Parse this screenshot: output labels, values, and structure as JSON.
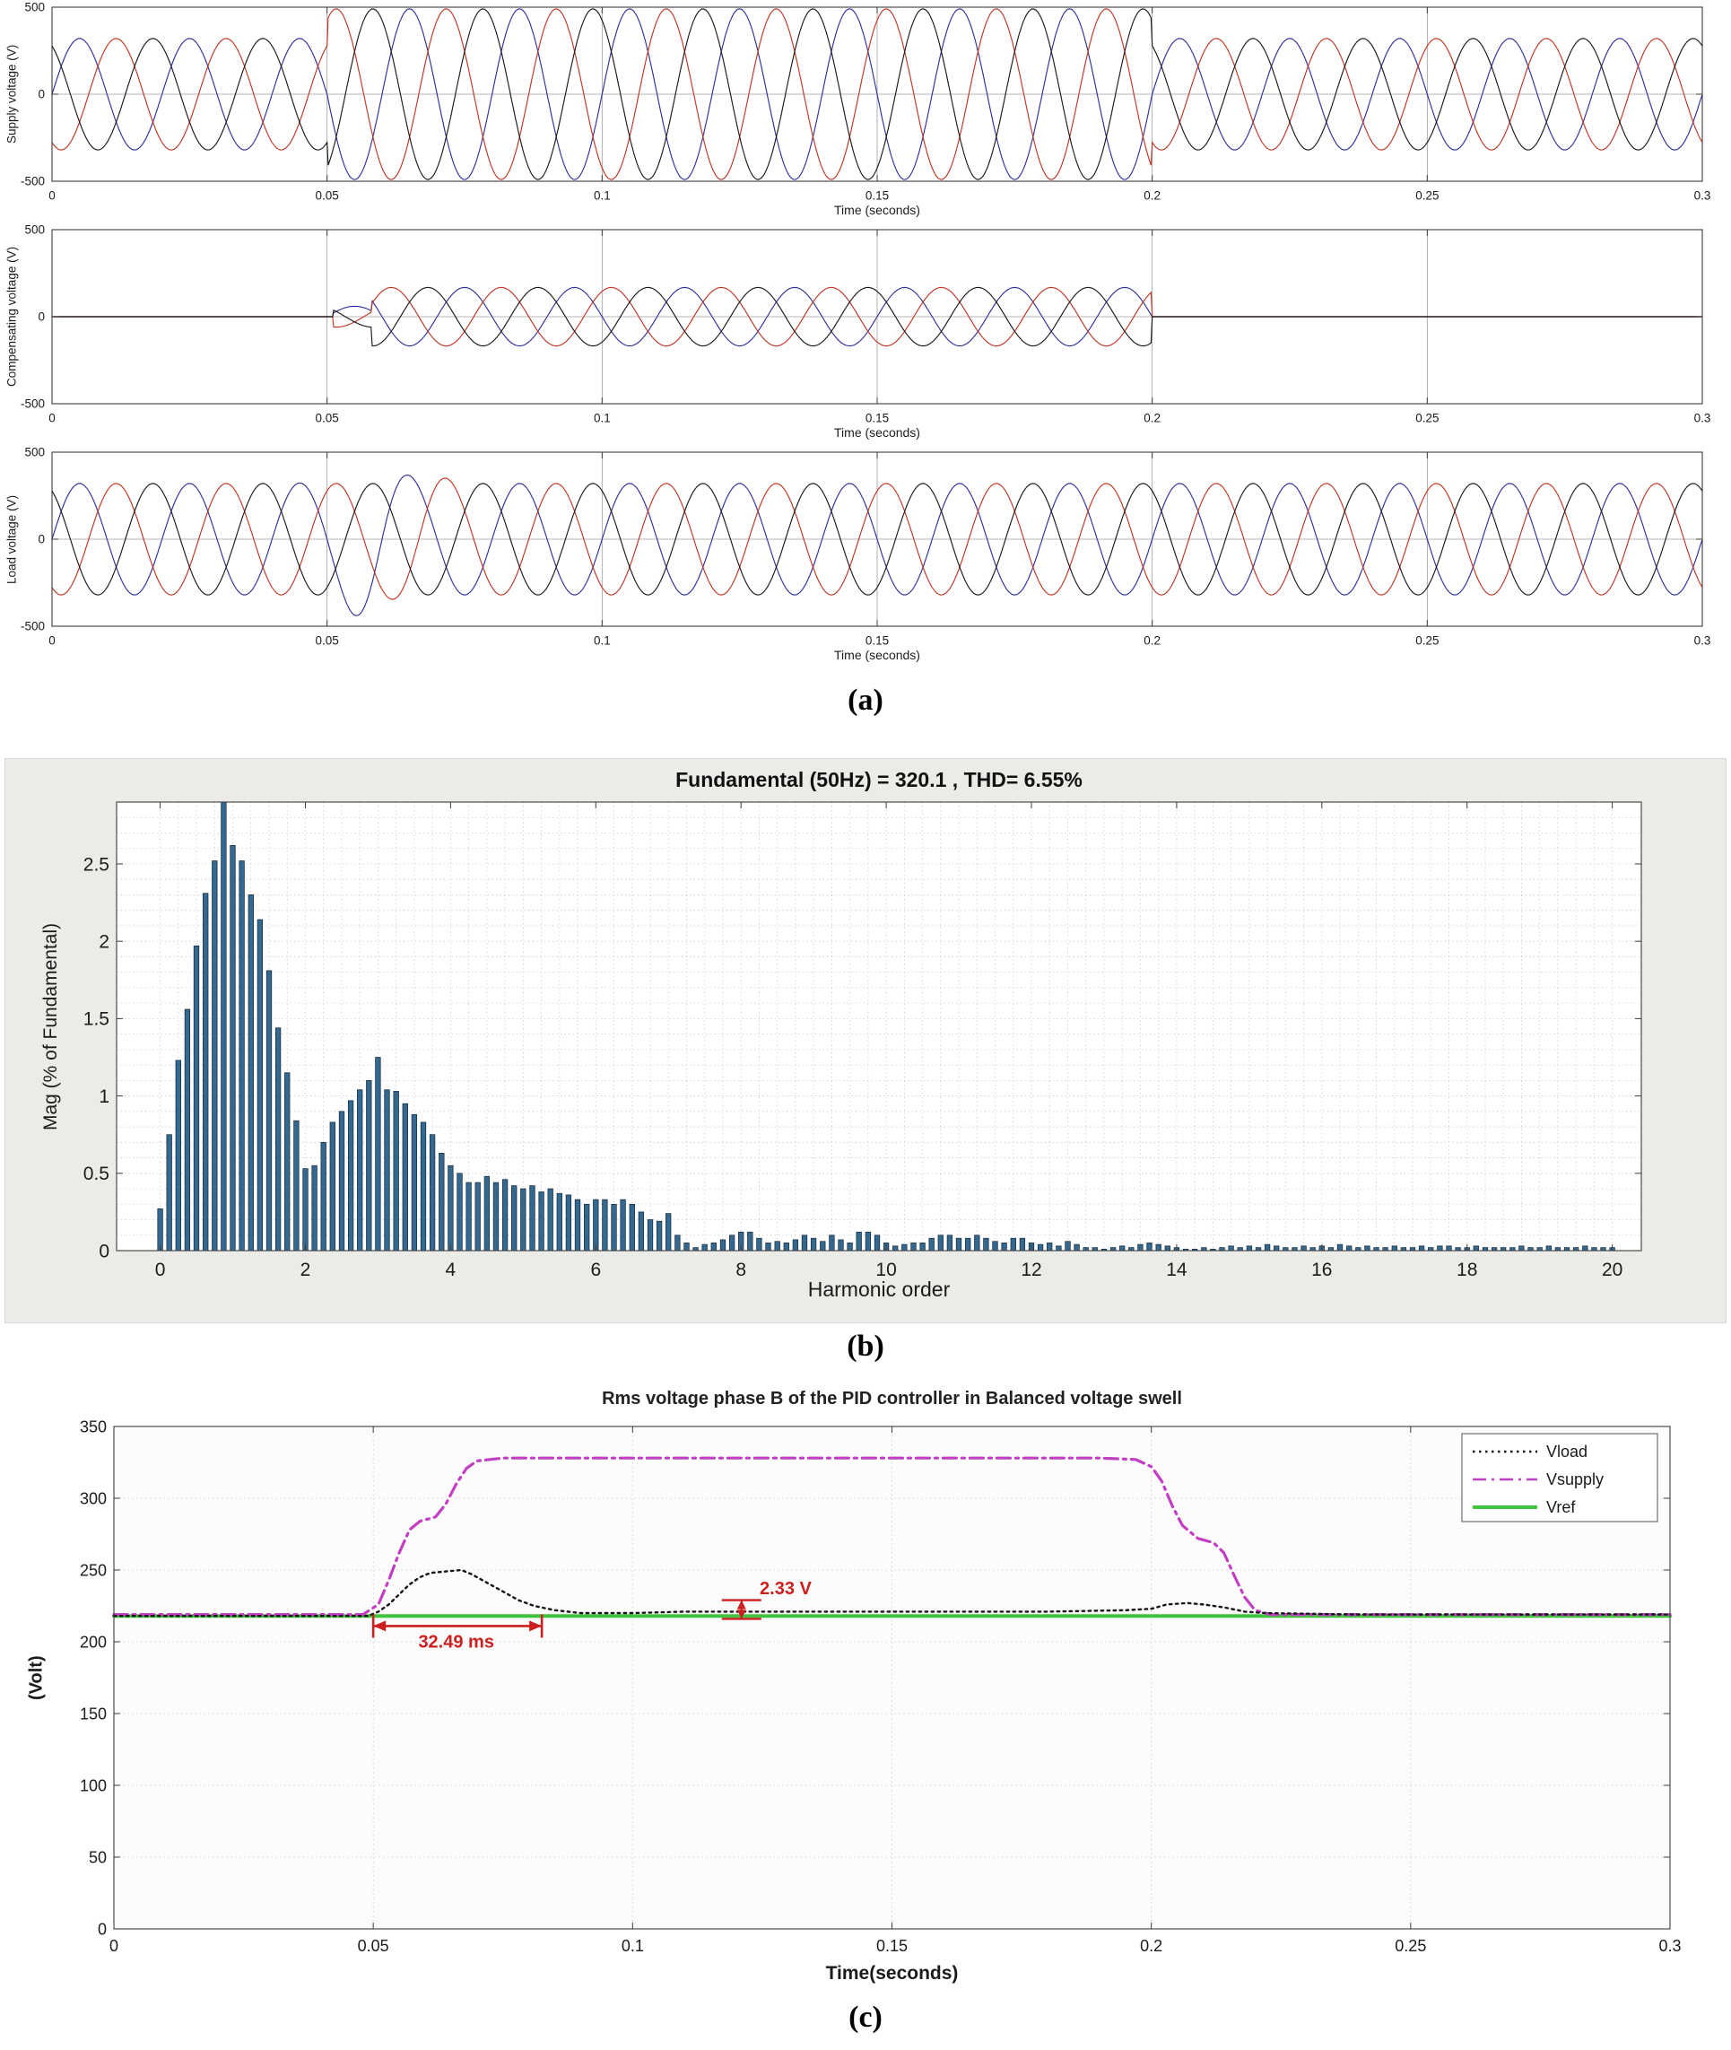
{
  "figure": {
    "label_a": "(a)",
    "label_b": "(b)",
    "label_c": "(c)"
  },
  "chart_data": [
    {
      "id": "supply_voltage_waveform",
      "type": "line",
      "ylabel": "Supply voltage (V)",
      "xlabel": "Time (seconds)",
      "xlim": [
        0,
        0.3
      ],
      "ylim": [
        -500,
        500
      ],
      "xticks": [
        "0",
        "0.05",
        "0.1",
        "0.15",
        "0.2",
        "0.25",
        "0.3"
      ],
      "yticks": [
        "-500",
        "0",
        "500"
      ],
      "grid": "on",
      "signal": {
        "kind": "three_phase_sine",
        "frequency_hz": 50,
        "phase_colors": [
          "#30309c",
          "#c03524",
          "#1a1a1a"
        ],
        "phase_offsets_deg": [
          0,
          -120,
          120
        ],
        "amplitude_segments": [
          {
            "t": [
              0,
              0.05
            ],
            "amp": 320
          },
          {
            "t": [
              0.05,
              0.2
            ],
            "amp": 490
          },
          {
            "t": [
              0.2,
              0.301
            ],
            "amp": 320
          }
        ]
      }
    },
    {
      "id": "compensating_voltage_waveform",
      "type": "line",
      "ylabel": "Compensating voltage (V)",
      "xlabel": "Time (seconds)",
      "xlim": [
        0,
        0.3
      ],
      "ylim": [
        -500,
        500
      ],
      "xticks": [
        "0",
        "0.05",
        "0.1",
        "0.15",
        "0.2",
        "0.25",
        "0.3"
      ],
      "yticks": [
        "-500",
        "0",
        "500"
      ],
      "grid": "on",
      "signal": {
        "kind": "three_phase_sine",
        "frequency_hz": 50,
        "phase_colors": [
          "#30309c",
          "#c03524",
          "#1a1a1a"
        ],
        "phase_offsets_deg": [
          180,
          60,
          300
        ],
        "amplitude_segments": [
          {
            "t": [
              0,
              0.051
            ],
            "amp": 0
          },
          {
            "t": [
              0.051,
              0.058
            ],
            "amp": 60
          },
          {
            "t": [
              0.058,
              0.2
            ],
            "amp": 168
          },
          {
            "t": [
              0.2,
              0.301
            ],
            "amp": 0
          }
        ]
      }
    },
    {
      "id": "load_voltage_waveform",
      "type": "line",
      "ylabel": "Load voltage (V)",
      "xlabel": "Time (seconds)",
      "xlim": [
        0,
        0.3
      ],
      "ylim": [
        -500,
        500
      ],
      "xticks": [
        "0",
        "0.05",
        "0.1",
        "0.15",
        "0.2",
        "0.25",
        "0.3"
      ],
      "yticks": [
        "-500",
        "0",
        "500"
      ],
      "grid": "on",
      "signal": {
        "kind": "three_phase_sine",
        "frequency_hz": 50,
        "phase_colors": [
          "#30309c",
          "#c03524",
          "#1a1a1a"
        ],
        "phase_offsets_deg": [
          0,
          -120,
          120
        ],
        "amplitude_segments": [
          {
            "t": [
              0,
              0.301
            ],
            "amp": 320
          }
        ],
        "transients": [
          {
            "phase": 0,
            "gain_bumps": [
              {
                "t0": 0.058,
                "sigma": 0.0065,
                "gain": 0.45
              }
            ]
          },
          {
            "phase": 1,
            "gain_bumps": [
              {
                "t0": 0.067,
                "sigma": 0.006,
                "gain": 0.17
              }
            ]
          }
        ]
      }
    },
    {
      "id": "harmonic_spectrum",
      "type": "bar",
      "title": "Fundamental (50Hz) = 320.1 , THD= 6.55%",
      "xlabel": "Harmonic order",
      "ylabel": "Mag (% of Fundamental)",
      "xlim": [
        -0.6,
        20.4
      ],
      "ylim": [
        0,
        2.9
      ],
      "xticks": [
        "0",
        "2",
        "4",
        "6",
        "8",
        "10",
        "12",
        "14",
        "16",
        "18",
        "20"
      ],
      "yticks": [
        "0",
        "0.5",
        "1",
        "1.5",
        "2",
        "2.5"
      ],
      "bar_color": "#35688f",
      "bar_edge": "#13293a",
      "x_start": 0,
      "x_step": 0.125,
      "values": [
        0.27,
        0.75,
        1.23,
        1.56,
        1.97,
        2.31,
        2.52,
        2.92,
        2.62,
        2.52,
        2.3,
        2.14,
        1.81,
        1.44,
        1.15,
        0.84,
        0.53,
        0.55,
        0.7,
        0.83,
        0.9,
        0.97,
        1.04,
        1.1,
        1.25,
        1.04,
        1.03,
        0.95,
        0.88,
        0.83,
        0.75,
        0.63,
        0.55,
        0.5,
        0.44,
        0.44,
        0.48,
        0.44,
        0.46,
        0.42,
        0.4,
        0.42,
        0.38,
        0.4,
        0.37,
        0.36,
        0.33,
        0.3,
        0.33,
        0.33,
        0.3,
        0.33,
        0.3,
        0.25,
        0.2,
        0.19,
        0.24,
        0.1,
        0.05,
        0.02,
        0.04,
        0.05,
        0.07,
        0.1,
        0.12,
        0.12,
        0.08,
        0.05,
        0.06,
        0.05,
        0.07,
        0.1,
        0.08,
        0.06,
        0.1,
        0.07,
        0.05,
        0.12,
        0.12,
        0.1,
        0.05,
        0.03,
        0.04,
        0.05,
        0.05,
        0.08,
        0.1,
        0.1,
        0.08,
        0.08,
        0.1,
        0.08,
        0.06,
        0.05,
        0.08,
        0.08,
        0.05,
        0.04,
        0.05,
        0.03,
        0.06,
        0.04,
        0.02,
        0.02,
        0.01,
        0.02,
        0.03,
        0.02,
        0.04,
        0.05,
        0.04,
        0.03,
        0.02,
        0.01,
        0.01,
        0.02,
        0.01,
        0.02,
        0.03,
        0.02,
        0.03,
        0.02,
        0.04,
        0.03,
        0.02,
        0.02,
        0.03,
        0.02,
        0.03,
        0.02,
        0.04,
        0.03,
        0.02,
        0.03,
        0.02,
        0.02,
        0.03,
        0.02,
        0.02,
        0.03,
        0.02,
        0.03,
        0.03,
        0.02,
        0.02,
        0.03,
        0.02,
        0.02,
        0.02,
        0.02,
        0.03,
        0.02,
        0.02,
        0.03,
        0.02,
        0.02,
        0.02,
        0.03,
        0.02,
        0.02,
        0.02
      ]
    },
    {
      "id": "rms_phase_b",
      "type": "line",
      "title": "Rms voltage phase B of the PID controller in Balanced voltage swell",
      "xlabel": "Time(seconds)",
      "ylabel": "(Volt)",
      "xlim": [
        0,
        0.3
      ],
      "ylim": [
        0,
        350
      ],
      "xticks": [
        "0",
        "0.05",
        "0.1",
        "0.15",
        "0.2",
        "0.25",
        "0.3"
      ],
      "yticks": [
        "0",
        "50",
        "100",
        "150",
        "200",
        "250",
        "300",
        "350"
      ],
      "legend_position": "top-right",
      "legend": [
        {
          "label": "Vload",
          "color": "#161616",
          "dash": "dotted"
        },
        {
          "label": "Vsupply",
          "color": "#c23ec2",
          "dash": "dashdot"
        },
        {
          "label": "Vref",
          "color": "#3ec43e",
          "dash": "solid"
        }
      ],
      "series": [
        {
          "name": "Vref",
          "color": "#3ec43e",
          "dash": "solid",
          "width": 4,
          "points": [
            [
              0,
              218
            ],
            [
              0.3,
              218
            ]
          ]
        },
        {
          "name": "Vsupply",
          "color": "#c23ec2",
          "dash": "dashdot",
          "width": 3.2,
          "points": [
            [
              0,
              219
            ],
            [
              0.048,
              219
            ],
            [
              0.051,
              226
            ],
            [
              0.053,
              243
            ],
            [
              0.055,
              262
            ],
            [
              0.057,
              278
            ],
            [
              0.059,
              284
            ],
            [
              0.062,
              287
            ],
            [
              0.064,
              296
            ],
            [
              0.066,
              310
            ],
            [
              0.068,
              321
            ],
            [
              0.07,
              326
            ],
            [
              0.075,
              328
            ],
            [
              0.1,
              328
            ],
            [
              0.15,
              328
            ],
            [
              0.19,
              328
            ],
            [
              0.197,
              327
            ],
            [
              0.2,
              322
            ],
            [
              0.202,
              312
            ],
            [
              0.204,
              295
            ],
            [
              0.206,
              281
            ],
            [
              0.209,
              272
            ],
            [
              0.212,
              269
            ],
            [
              0.214,
              262
            ],
            [
              0.216,
              246
            ],
            [
              0.218,
              231
            ],
            [
              0.22,
              222
            ],
            [
              0.223,
              219
            ],
            [
              0.25,
              219
            ],
            [
              0.3,
              219
            ]
          ]
        },
        {
          "name": "Vload",
          "color": "#161616",
          "dash": "dotted",
          "width": 2.4,
          "points": [
            [
              0,
              218
            ],
            [
              0.049,
              218
            ],
            [
              0.051,
              221
            ],
            [
              0.053,
              226
            ],
            [
              0.055,
              233
            ],
            [
              0.057,
              240
            ],
            [
              0.059,
              245
            ],
            [
              0.061,
              248
            ],
            [
              0.064,
              249
            ],
            [
              0.067,
              250
            ],
            [
              0.069,
              247
            ],
            [
              0.072,
              241
            ],
            [
              0.075,
              235
            ],
            [
              0.078,
              229
            ],
            [
              0.081,
              225
            ],
            [
              0.085,
              222
            ],
            [
              0.09,
              220
            ],
            [
              0.1,
              220
            ],
            [
              0.11,
              221
            ],
            [
              0.12,
              221
            ],
            [
              0.14,
              221
            ],
            [
              0.16,
              221
            ],
            [
              0.18,
              221
            ],
            [
              0.195,
              222
            ],
            [
              0.2,
              223
            ],
            [
              0.203,
              226
            ],
            [
              0.207,
              227
            ],
            [
              0.21,
              226
            ],
            [
              0.214,
              224
            ],
            [
              0.218,
              221
            ],
            [
              0.222,
              220
            ],
            [
              0.24,
              219
            ],
            [
              0.27,
              219
            ],
            [
              0.3,
              219
            ]
          ]
        }
      ],
      "annotations": [
        {
          "type": "h-arrow",
          "x1": 0.05,
          "x2": 0.0825,
          "y": 211,
          "label": "32.49 ms",
          "label_x": 0.066,
          "label_y": 196,
          "color": "#cc1f1f"
        },
        {
          "type": "v-marker",
          "x": 0.121,
          "y1": 216,
          "y2": 229,
          "label": "2.33 V",
          "label_x": 0.1245,
          "label_y": 233,
          "color": "#cc1f1f"
        }
      ]
    }
  ]
}
